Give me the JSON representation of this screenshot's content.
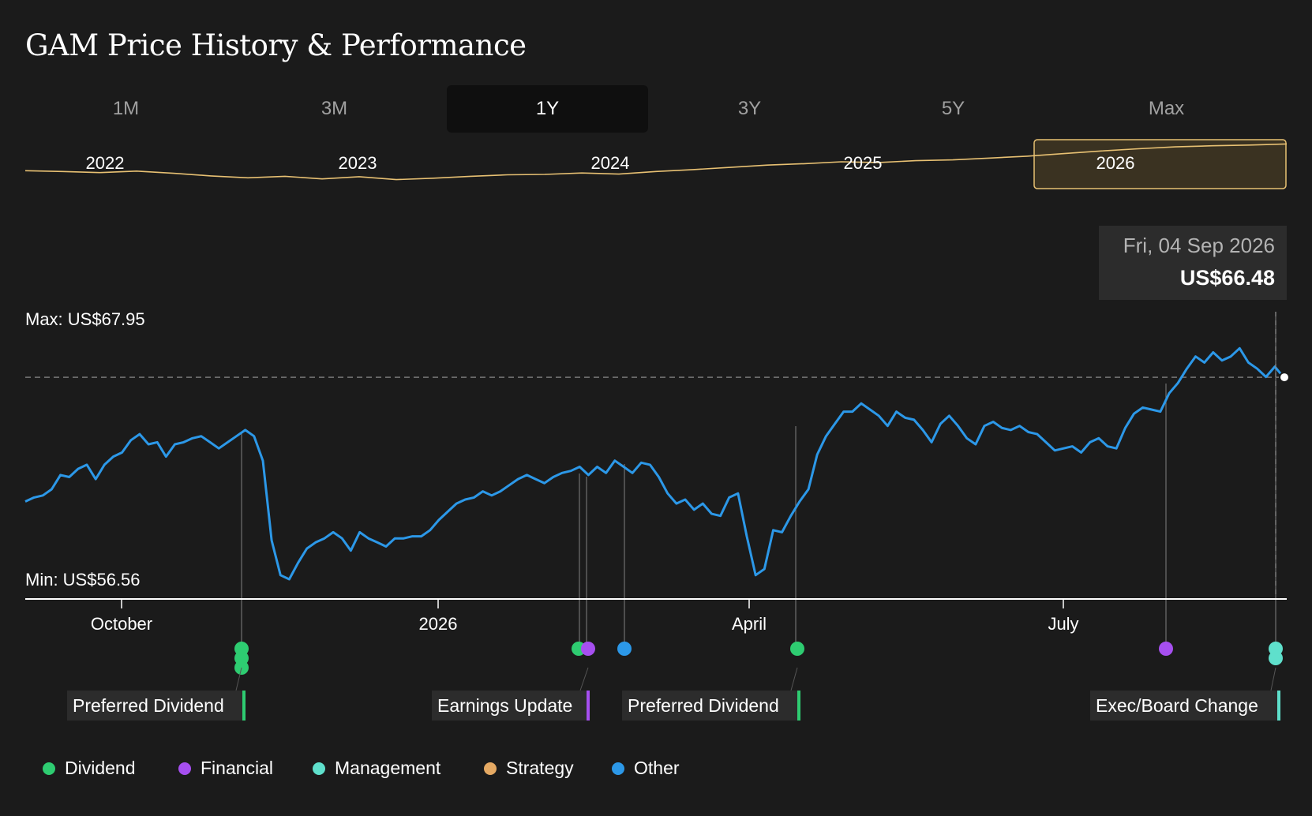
{
  "page": {
    "title": "GAM Price History & Performance"
  },
  "tabs": [
    {
      "label": "1M",
      "active": false
    },
    {
      "label": "3M",
      "active": false
    },
    {
      "label": "1Y",
      "active": true
    },
    {
      "label": "3Y",
      "active": false
    },
    {
      "label": "5Y",
      "active": false
    },
    {
      "label": "Max",
      "active": false
    }
  ],
  "tooltip": {
    "date": "Fri, 04 Sep 2026",
    "price": "US$66.48"
  },
  "colors": {
    "price_line": "#2c98e8",
    "overview_line": "#e8c173",
    "axis": "#ffffff",
    "dividend": "#2ecc71",
    "financial": "#a64ff0",
    "management": "#5fe0cc",
    "strategy": "#e5a963",
    "other": "#2c98e8"
  },
  "legend": [
    {
      "label": "Dividend",
      "color": "#2ecc71"
    },
    {
      "label": "Financial",
      "color": "#a64ff0"
    },
    {
      "label": "Management",
      "color": "#5fe0cc"
    },
    {
      "label": "Strategy",
      "color": "#e5a963"
    },
    {
      "label": "Other",
      "color": "#2c98e8"
    }
  ],
  "chart_data": [
    {
      "type": "line",
      "name": "overview",
      "x_labels": [
        "2022",
        "2023",
        "2024",
        "2025",
        "2026"
      ],
      "selected_range": "1Y",
      "y": [
        60.0,
        59.8,
        59.5,
        59.9,
        59.3,
        58.6,
        58.1,
        58.5,
        57.8,
        58.4,
        57.6,
        58.0,
        58.5,
        58.9,
        59.0,
        59.4,
        59.1,
        59.8,
        60.3,
        60.9,
        61.5,
        61.9,
        62.4,
        62.2,
        62.7,
        62.9,
        63.4,
        63.9,
        64.6,
        65.3,
        65.9,
        66.4,
        66.7,
        66.9,
        67.2
      ]
    },
    {
      "type": "line",
      "name": "1Y price",
      "x_ticks": [
        "October",
        "2026",
        "April",
        "July"
      ],
      "max_label": "Max: US$67.95",
      "min_label": "Min: US$56.56",
      "max_value": 67.95,
      "min_value": 56.56,
      "last_value": 66.48,
      "y": [
        60.4,
        60.6,
        60.7,
        61.0,
        61.7,
        61.6,
        62.0,
        62.2,
        61.5,
        62.2,
        62.6,
        62.8,
        63.4,
        63.7,
        63.2,
        63.3,
        62.6,
        63.2,
        63.3,
        63.5,
        63.6,
        63.3,
        63.0,
        63.3,
        63.6,
        63.9,
        63.6,
        62.4,
        58.5,
        56.8,
        56.6,
        57.4,
        58.1,
        58.4,
        58.6,
        58.9,
        58.6,
        58.0,
        58.9,
        58.6,
        58.4,
        58.2,
        58.6,
        58.6,
        58.7,
        58.7,
        59.0,
        59.5,
        59.9,
        60.3,
        60.5,
        60.6,
        60.9,
        60.7,
        60.9,
        61.2,
        61.5,
        61.7,
        61.5,
        61.3,
        61.6,
        61.8,
        61.9,
        62.1,
        61.7,
        62.1,
        61.8,
        62.4,
        62.1,
        61.8,
        62.3,
        62.2,
        61.6,
        60.8,
        60.3,
        60.5,
        60.0,
        60.3,
        59.8,
        59.7,
        60.6,
        60.8,
        58.7,
        56.8,
        57.1,
        59.0,
        58.9,
        59.7,
        60.4,
        61.0,
        62.7,
        63.6,
        64.2,
        64.8,
        64.8,
        65.2,
        64.9,
        64.6,
        64.1,
        64.8,
        64.5,
        64.4,
        63.9,
        63.3,
        64.2,
        64.6,
        64.1,
        63.5,
        63.2,
        64.1,
        64.3,
        64.0,
        63.9,
        64.1,
        63.8,
        63.7,
        63.3,
        62.9,
        63.0,
        63.1,
        62.8,
        63.3,
        63.5,
        63.1,
        63.0,
        64.0,
        64.7,
        65.0,
        64.9,
        64.8,
        65.7,
        66.2,
        66.9,
        67.5,
        67.2,
        67.7,
        67.3,
        67.5,
        67.9,
        67.2,
        66.9,
        66.5,
        67.0,
        66.48
      ]
    }
  ],
  "event_markers": [
    {
      "type": "Dividend",
      "date": "2025-11"
    },
    {
      "type": "Dividend",
      "date": "2025-11"
    },
    {
      "type": "Dividend",
      "date": "2025-11"
    },
    {
      "type": "Dividend",
      "date": "2026-03"
    },
    {
      "type": "Financial",
      "date": "2026-03"
    },
    {
      "type": "Other",
      "date": "2026-03"
    },
    {
      "type": "Dividend",
      "date": "2026-04"
    },
    {
      "type": "Financial",
      "date": "2026-08"
    },
    {
      "type": "Management",
      "date": "2026-09"
    },
    {
      "type": "Management",
      "date": "2026-09"
    }
  ],
  "event_labels": [
    {
      "text": "Preferred Dividend",
      "color": "#2ecc71"
    },
    {
      "text": "Earnings Update",
      "color": "#a64ff0"
    },
    {
      "text": "Preferred Dividend",
      "color": "#2ecc71"
    },
    {
      "text": "Exec/Board Change",
      "color": "#5fe0cc"
    }
  ]
}
